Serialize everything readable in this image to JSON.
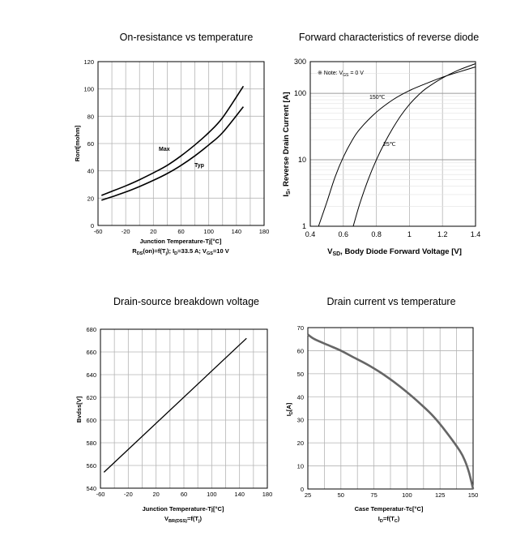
{
  "chart_data": [
    {
      "id": "c1",
      "type": "line",
      "title": "On-resistance vs temperature",
      "xlabel": "Junction Temperature-Tj[°C]",
      "ylabel": "Ront[mohm]",
      "caption": "R_DS(on)=f(T_j); I_D=33.5 A; V_GS=10 V",
      "xlim": [
        -60,
        180
      ],
      "ylim": [
        0,
        120
      ],
      "xticks": [
        "-60",
        "-20",
        "20",
        "60",
        "100",
        "140",
        "180"
      ],
      "yticks": [
        "0",
        "20",
        "40",
        "60",
        "80",
        "100",
        "120"
      ],
      "grid": true,
      "series": [
        {
          "name": "Max",
          "x": [
            -55,
            -40,
            -20,
            0,
            20,
            40,
            60,
            80,
            100,
            120,
            150
          ],
          "y": [
            22,
            25,
            29,
            33.5,
            38.5,
            44,
            51,
            59,
            68,
            79,
            102
          ]
        },
        {
          "name": "Typ",
          "x": [
            -55,
            -40,
            -20,
            0,
            20,
            40,
            60,
            80,
            100,
            120,
            150
          ],
          "y": [
            18.5,
            21,
            24.5,
            28.5,
            33,
            38,
            44,
            51,
            59,
            68,
            87
          ]
        }
      ]
    },
    {
      "id": "c2",
      "type": "line",
      "title": "Forward characteristics of reverse diode",
      "xlabel": "V_SD, Body Diode Forward Voltage [V]",
      "ylabel": "I_S, Reverse Drain Current [A]",
      "note": "※ Note: V_GS = 0 V",
      "xlim": [
        0.4,
        1.4
      ],
      "ylim": [
        1,
        300
      ],
      "yscale": "log",
      "xticks": [
        "0.4",
        "0.6",
        "0.8",
        "1",
        "1.2",
        "1.4"
      ],
      "yticks": [
        "1",
        "10",
        "100",
        "300"
      ],
      "grid": true,
      "series": [
        {
          "name": "150℃",
          "x": [
            0.45,
            0.5,
            0.55,
            0.6,
            0.65,
            0.7,
            0.8,
            0.9,
            1.0,
            1.1,
            1.2,
            1.3,
            1.4
          ],
          "y": [
            1,
            2.3,
            5.5,
            11,
            19,
            29,
            52,
            80,
            110,
            140,
            175,
            210,
            250
          ]
        },
        {
          "name": "25℃",
          "x": [
            0.66,
            0.7,
            0.75,
            0.8,
            0.85,
            0.9,
            0.95,
            1.0,
            1.05,
            1.1,
            1.2,
            1.3,
            1.4
          ],
          "y": [
            1,
            2.2,
            5,
            10,
            18,
            30,
            47,
            68,
            92,
            118,
            170,
            225,
            280
          ]
        }
      ]
    },
    {
      "id": "c3",
      "type": "line",
      "title": "Drain-source breakdown voltage",
      "xlabel": "Junction Temperature-Tj[°C]",
      "ylabel": "Bvdss[V]",
      "caption": "V_BR(DSS)=f(T_j)",
      "xlim": [
        -60,
        180
      ],
      "ylim": [
        540,
        680
      ],
      "xticks": [
        "-60",
        "-20",
        "20",
        "60",
        "100",
        "140",
        "180"
      ],
      "yticks": [
        "540",
        "560",
        "580",
        "600",
        "620",
        "640",
        "660",
        "680"
      ],
      "grid": true,
      "series": [
        {
          "name": "BVdss",
          "x": [
            -55,
            150
          ],
          "y": [
            554,
            672
          ]
        }
      ]
    },
    {
      "id": "c4",
      "type": "line",
      "title": "Drain current vs temperature",
      "xlabel": "Case Temperatur-Tc[°C]",
      "ylabel": "I_D[A]",
      "caption": "I_D=f(T_C)",
      "xlim": [
        25,
        150
      ],
      "ylim": [
        0,
        70
      ],
      "xticks": [
        "25",
        "50",
        "75",
        "100",
        "125",
        "150"
      ],
      "yticks": [
        "0",
        "10",
        "20",
        "30",
        "40",
        "50",
        "60",
        "70"
      ],
      "grid": true,
      "series": [
        {
          "name": "ID",
          "x": [
            25,
            30,
            40,
            50,
            60,
            70,
            80,
            90,
            100,
            110,
            120,
            130,
            140,
            144,
            147,
            148.5,
            150
          ],
          "y": [
            67,
            65,
            62.5,
            60,
            57,
            54,
            50.5,
            46.5,
            42,
            37,
            31.5,
            24.5,
            16.5,
            12,
            7,
            3.5,
            0
          ]
        }
      ]
    }
  ]
}
